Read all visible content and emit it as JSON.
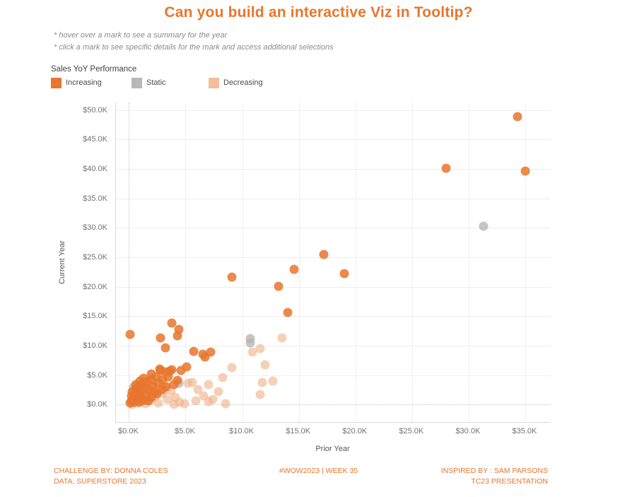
{
  "title": "Can you build an interactive Viz in Tooltip?",
  "notes": {
    "line1": "* hover over a mark to see a summary for the year",
    "line2": "* click a mark to see specific details for the mark and access additional selections"
  },
  "legend": {
    "title": "Sales YoY Performance",
    "items": [
      {
        "label": "Increasing",
        "color": "#e8762d"
      },
      {
        "label": "Static",
        "color": "#b8b8b8"
      },
      {
        "label": "Decreasing",
        "color": "#f2be9b"
      }
    ]
  },
  "chart_data": {
    "type": "scatter",
    "title": "Can you build an interactive Viz in Tooltip?",
    "xlabel": "Prior Year",
    "ylabel": "Current Year",
    "units": "thousands of dollars (K)",
    "xlim": [
      -1.15,
      37.25
    ],
    "ylim": [
      -2.95,
      51.3
    ],
    "x_ticks": {
      "values": [
        0,
        5,
        10,
        15,
        20,
        25,
        30,
        35
      ],
      "labels": [
        "$0.0K",
        "$5.0K",
        "$10.0K",
        "$15.0K",
        "$20.0K",
        "$25.0K",
        "$30.0K",
        "$35.0K"
      ]
    },
    "y_ticks": {
      "values": [
        0,
        5,
        10,
        15,
        20,
        25,
        30,
        35,
        40,
        45,
        50
      ],
      "labels": [
        "$0.0K",
        "$5.0K",
        "$10.0K",
        "$15.0K",
        "$20.0K",
        "$25.0K",
        "$30.0K",
        "$35.0K",
        "$40.0K",
        "$45.0K",
        "$50.0K"
      ]
    },
    "grid": true,
    "legend_position": "top-left",
    "series": [
      {
        "name": "Static",
        "color": "#b4b2b1",
        "opacity": 0.75,
        "points": [
          [
            31.3,
            30.3
          ],
          [
            10.7,
            11.2
          ],
          [
            10.7,
            10.5
          ],
          [
            4.4,
            3.7
          ],
          [
            0.2,
            0.5
          ],
          [
            0.4,
            2.9
          ],
          [
            0.5,
            1.2
          ],
          [
            0.9,
            2.0
          ],
          [
            1.1,
            3.2
          ],
          [
            1.3,
            0.6
          ],
          [
            1.7,
            1.9
          ],
          [
            2.1,
            2.9
          ],
          [
            2.5,
            2.2
          ],
          [
            0.7,
            2.4
          ]
        ]
      },
      {
        "name": "Decreasing",
        "color": "#efb089",
        "opacity": 0.6,
        "points": [
          [
            13.5,
            11.3
          ],
          [
            11.6,
            9.5
          ],
          [
            10.9,
            8.9
          ],
          [
            12.0,
            6.8
          ],
          [
            9.1,
            6.3
          ],
          [
            8.3,
            4.6
          ],
          [
            12.7,
            4.0
          ],
          [
            11.8,
            3.8
          ],
          [
            7.9,
            2.2
          ],
          [
            11.6,
            1.7
          ],
          [
            5.2,
            3.7
          ],
          [
            5.6,
            3.8
          ],
          [
            6.1,
            2.6
          ],
          [
            6.6,
            1.5
          ],
          [
            7.0,
            3.4
          ],
          [
            0.3,
            0.1
          ],
          [
            0.7,
            0.3
          ],
          [
            1.1,
            0.6
          ],
          [
            1.5,
            0.2
          ],
          [
            1.9,
            0.8
          ],
          [
            2.3,
            1.4
          ],
          [
            2.6,
            0.3
          ],
          [
            3.0,
            1.9
          ],
          [
            3.4,
            0.9
          ],
          [
            3.7,
            2.3
          ],
          [
            4.1,
            1.2
          ],
          [
            4.5,
            0.4
          ],
          [
            4.9,
            0.2
          ],
          [
            2.8,
            2.8
          ],
          [
            3.3,
            3.1
          ],
          [
            5.9,
            0.6
          ],
          [
            7.0,
            0.5
          ],
          [
            7.4,
            0.9
          ],
          [
            8.5,
            0.2
          ],
          [
            4.0,
            0.1
          ],
          [
            3.1,
            2.4
          ],
          [
            2.4,
            2.0
          ]
        ]
      },
      {
        "name": "Increasing",
        "color": "#e8762d",
        "opacity": 0.85,
        "points": [
          [
            34.3,
            48.9
          ],
          [
            28.0,
            40.1
          ],
          [
            35.0,
            39.6
          ],
          [
            17.2,
            25.5
          ],
          [
            14.6,
            23.0
          ],
          [
            19.0,
            22.3
          ],
          [
            9.1,
            21.7
          ],
          [
            13.2,
            20.1
          ],
          [
            14.0,
            15.6
          ],
          [
            3.8,
            13.9
          ],
          [
            4.4,
            12.8
          ],
          [
            0.1,
            11.9
          ],
          [
            4.3,
            11.7
          ],
          [
            2.8,
            11.3
          ],
          [
            3.2,
            9.6
          ],
          [
            5.7,
            9.0
          ],
          [
            7.2,
            8.9
          ],
          [
            6.5,
            8.6
          ],
          [
            6.7,
            8.1
          ],
          [
            0.1,
            0.3
          ],
          [
            0.2,
            0.7
          ],
          [
            0.2,
            1.5
          ],
          [
            0.3,
            2.2
          ],
          [
            0.4,
            0.4
          ],
          [
            0.4,
            1.1
          ],
          [
            0.5,
            1.9
          ],
          [
            0.6,
            2.7
          ],
          [
            0.7,
            0.9
          ],
          [
            0.8,
            1.7
          ],
          [
            0.8,
            3.1
          ],
          [
            0.9,
            0.4
          ],
          [
            1.0,
            2.3
          ],
          [
            1.0,
            4.0
          ],
          [
            1.1,
            1.3
          ],
          [
            1.2,
            3.5
          ],
          [
            1.3,
            0.8
          ],
          [
            1.4,
            2.9
          ],
          [
            1.5,
            1.6
          ],
          [
            1.6,
            3.9
          ],
          [
            1.7,
            0.6
          ],
          [
            1.8,
            2.5
          ],
          [
            1.9,
            4.3
          ],
          [
            2.0,
            1.2
          ],
          [
            2.1,
            3.2
          ],
          [
            2.2,
            2.1
          ],
          [
            2.4,
            4.7
          ],
          [
            2.5,
            1.8
          ],
          [
            2.6,
            3.6
          ],
          [
            2.7,
            6.1
          ],
          [
            2.8,
            5.8
          ],
          [
            2.9,
            2.6
          ],
          [
            3.0,
            4.3
          ],
          [
            3.2,
            5.6
          ],
          [
            3.3,
            3.1
          ],
          [
            3.5,
            4.7
          ],
          [
            3.6,
            5.7
          ],
          [
            3.8,
            5.9
          ],
          [
            4.0,
            3.4
          ],
          [
            4.3,
            4.1
          ],
          [
            4.6,
            5.8
          ],
          [
            0.6,
            3.4
          ],
          [
            1.3,
            4.5
          ],
          [
            2.0,
            5.2
          ],
          [
            5.1,
            6.4
          ]
        ]
      }
    ]
  },
  "footer": {
    "left_line1": "CHALLENGE BY: DONNA COLES",
    "left_line2": "DATA: SUPERSTORE 2023",
    "center": "#WOW2023  | WEEK 35",
    "right_line1": "INSPIRED BY : SAM PARSONS",
    "right_line2": "TC23 PRESENTATION"
  }
}
